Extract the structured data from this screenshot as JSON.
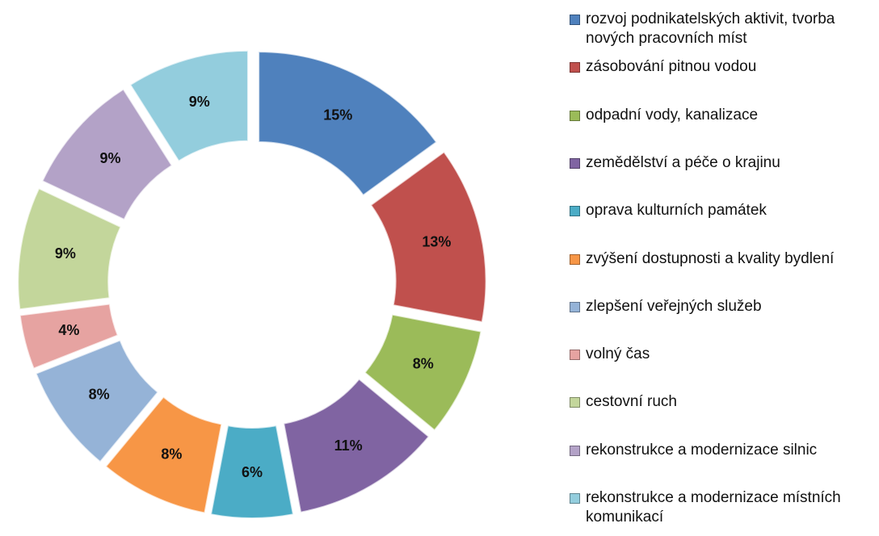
{
  "chart_data": {
    "type": "donut",
    "categories": [
      "rozvoj podnikatelských aktivit, tvorba nových pracovních míst",
      "zásobování pitnou vodou",
      "odpadní vody, kanalizace",
      "zemědělství a péče o krajinu",
      "oprava kulturních památek",
      "zvýšení dostupnosti a kvality bydlení",
      "zlepšení veřejných služeb",
      "volný čas",
      "cestovní ruch",
      "rekonstrukce a modernizace silnic",
      "rekonstrukce a modernizace místních komunikací"
    ],
    "values": [
      15,
      13,
      8,
      11,
      6,
      8,
      8,
      4,
      9,
      9,
      9
    ],
    "value_labels": [
      "15%",
      "13%",
      "8%",
      "11%",
      "6%",
      "8%",
      "8%",
      "4%",
      "9%",
      "9%",
      "9%"
    ],
    "colors": [
      "#4f81bd",
      "#c0504d",
      "#9bbb59",
      "#8064a2",
      "#4bacc6",
      "#f79646",
      "#95b3d7",
      "#e6a3a1",
      "#c3d69b",
      "#b3a2c7",
      "#93cddd"
    ],
    "legend": "right"
  }
}
